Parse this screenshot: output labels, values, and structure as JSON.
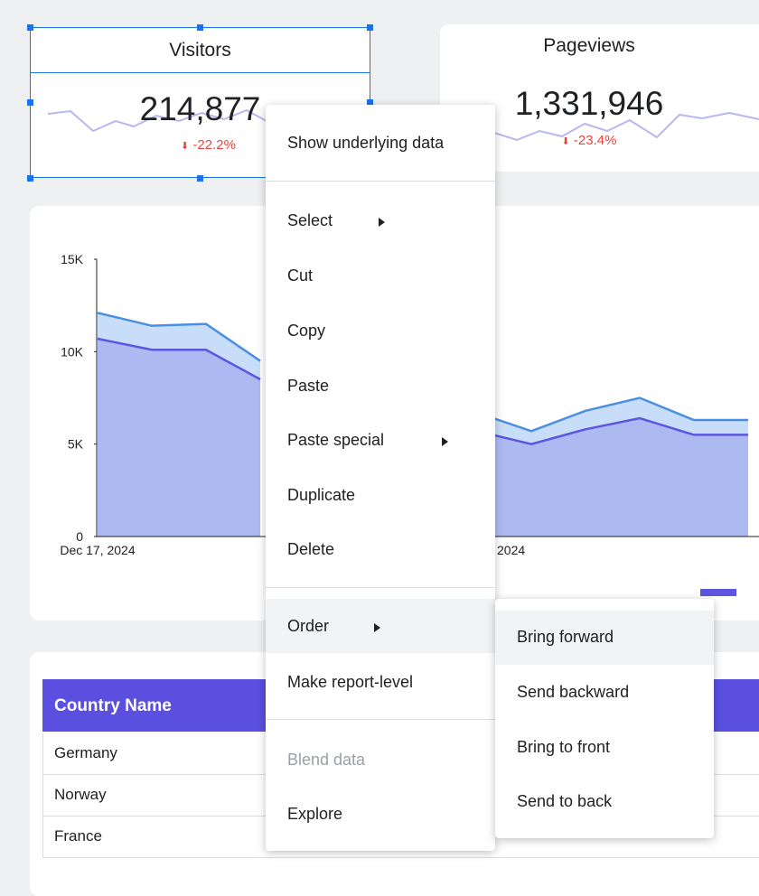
{
  "scorecards": [
    {
      "title": "Visitors",
      "value": "214,877",
      "change": "-22.2%"
    },
    {
      "title": "Pageviews",
      "value": "1,331,946",
      "change": "-23.4%"
    }
  ],
  "chart_data": {
    "type": "area",
    "categories": [
      "Dec 17, 2024",
      null,
      null,
      null,
      null,
      null,
      null,
      "2024",
      null,
      null,
      null,
      null,
      null
    ],
    "series": [
      {
        "color": "#4a8fe3",
        "values": [
          12100,
          11400,
          11500,
          9500,
          null,
          null,
          null,
          6700,
          5700,
          6800,
          7500,
          6300,
          6300
        ]
      },
      {
        "color": "#5b55e0",
        "values": [
          10700,
          10100,
          10100,
          8500,
          null,
          null,
          null,
          5700,
          5000,
          5800,
          6400,
          5500,
          5500
        ]
      }
    ],
    "ylim": [
      0,
      15000
    ],
    "yticks": [
      0,
      {
        "value": 5000,
        "label": "5K"
      },
      {
        "value": 10000,
        "label": "10K"
      },
      {
        "value": 15000,
        "label": "15K"
      }
    ]
  },
  "context_menu": {
    "items": [
      "Show underlying data",
      "Select",
      "Cut",
      "Copy",
      "Paste",
      "Paste special",
      "Duplicate",
      "Delete",
      "Order",
      "Make report-level",
      "Blend data",
      "Explore"
    ]
  },
  "submenu": {
    "items": [
      "Bring forward",
      "Send backward",
      "Bring to front",
      "Send to back"
    ]
  },
  "table": {
    "header": "Country Name",
    "rows": [
      "Germany",
      "Norway",
      "France"
    ]
  }
}
